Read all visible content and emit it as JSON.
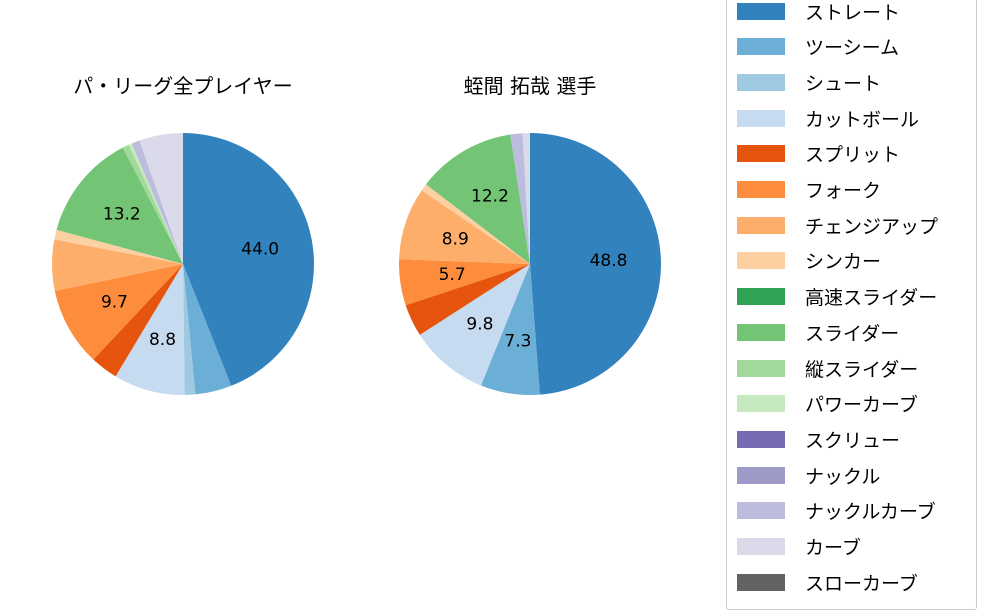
{
  "chart_data": [
    {
      "type": "pie",
      "title": "パ・リーグ全プレイヤー",
      "start_angle": 90,
      "direction": "clockwise",
      "categories": [
        "ストレート",
        "ツーシーム",
        "シュート",
        "カットボール",
        "スプリット",
        "フォーク",
        "チェンジアップ",
        "シンカー",
        "スライダー",
        "縦スライダー",
        "パワーカーブ",
        "ナックルカーブ",
        "カーブ"
      ],
      "values": [
        44.0,
        4.5,
        1.3,
        8.8,
        3.4,
        9.7,
        6.3,
        1.2,
        13.2,
        0.8,
        0.4,
        1.0,
        5.4
      ],
      "colors": [
        "#3182bd",
        "#6baed6",
        "#9ecae1",
        "#c6dbef",
        "#e6550d",
        "#fd8d3c",
        "#fdae6b",
        "#fdd0a2",
        "#74c476",
        "#a1d99b",
        "#c7e9c0",
        "#bcbddc",
        "#dadaeb"
      ],
      "labels_shown": [
        {
          "category": "ストレート",
          "text": "44.0"
        },
        {
          "category": "カットボール",
          "text": "8.8"
        },
        {
          "category": "フォーク",
          "text": "9.7"
        },
        {
          "category": "スライダー",
          "text": "13.2"
        }
      ]
    },
    {
      "type": "pie",
      "title": "蛭間 拓哉  選手",
      "start_angle": 90,
      "direction": "clockwise",
      "categories": [
        "ストレート",
        "ツーシーム",
        "カットボール",
        "スプリット",
        "フォーク",
        "チェンジアップ",
        "シンカー",
        "スライダー",
        "ナックルカーブ",
        "カーブ"
      ],
      "values": [
        48.8,
        7.3,
        9.8,
        4.0,
        5.7,
        8.9,
        0.9,
        12.2,
        1.5,
        0.9
      ],
      "colors": [
        "#3182bd",
        "#6baed6",
        "#c6dbef",
        "#e6550d",
        "#fd8d3c",
        "#fdae6b",
        "#fdd0a2",
        "#74c476",
        "#bcbddc",
        "#dadaeb"
      ],
      "labels_shown": [
        {
          "category": "ストレート",
          "text": "48.8"
        },
        {
          "category": "ツーシーム",
          "text": "7.3"
        },
        {
          "category": "カットボール",
          "text": "9.8"
        },
        {
          "category": "フォーク",
          "text": "5.7"
        },
        {
          "category": "チェンジアップ",
          "text": "8.9"
        },
        {
          "category": "スライダー",
          "text": "12.2"
        }
      ]
    }
  ],
  "charts": {
    "left": {
      "title": "パ・リーグ全プレイヤー"
    },
    "right": {
      "title": "蛭間 拓哉  選手"
    }
  },
  "legend": {
    "items": [
      {
        "label": "ストレート",
        "color": "#3182bd"
      },
      {
        "label": "ツーシーム",
        "color": "#6baed6"
      },
      {
        "label": "シュート",
        "color": "#9ecae1"
      },
      {
        "label": "カットボール",
        "color": "#c6dbef"
      },
      {
        "label": "スプリット",
        "color": "#e6550d"
      },
      {
        "label": "フォーク",
        "color": "#fd8d3c"
      },
      {
        "label": "チェンジアップ",
        "color": "#fdae6b"
      },
      {
        "label": "シンカー",
        "color": "#fdd0a2"
      },
      {
        "label": "高速スライダー",
        "color": "#31a354"
      },
      {
        "label": "スライダー",
        "color": "#74c476"
      },
      {
        "label": "縦スライダー",
        "color": "#a1d99b"
      },
      {
        "label": "パワーカーブ",
        "color": "#c7e9c0"
      },
      {
        "label": "スクリュー",
        "color": "#756bb1"
      },
      {
        "label": "ナックル",
        "color": "#9e9ac8"
      },
      {
        "label": "ナックルカーブ",
        "color": "#bcbddc"
      },
      {
        "label": "カーブ",
        "color": "#dadaeb"
      },
      {
        "label": "スローカーブ",
        "color": "#636363"
      }
    ]
  }
}
